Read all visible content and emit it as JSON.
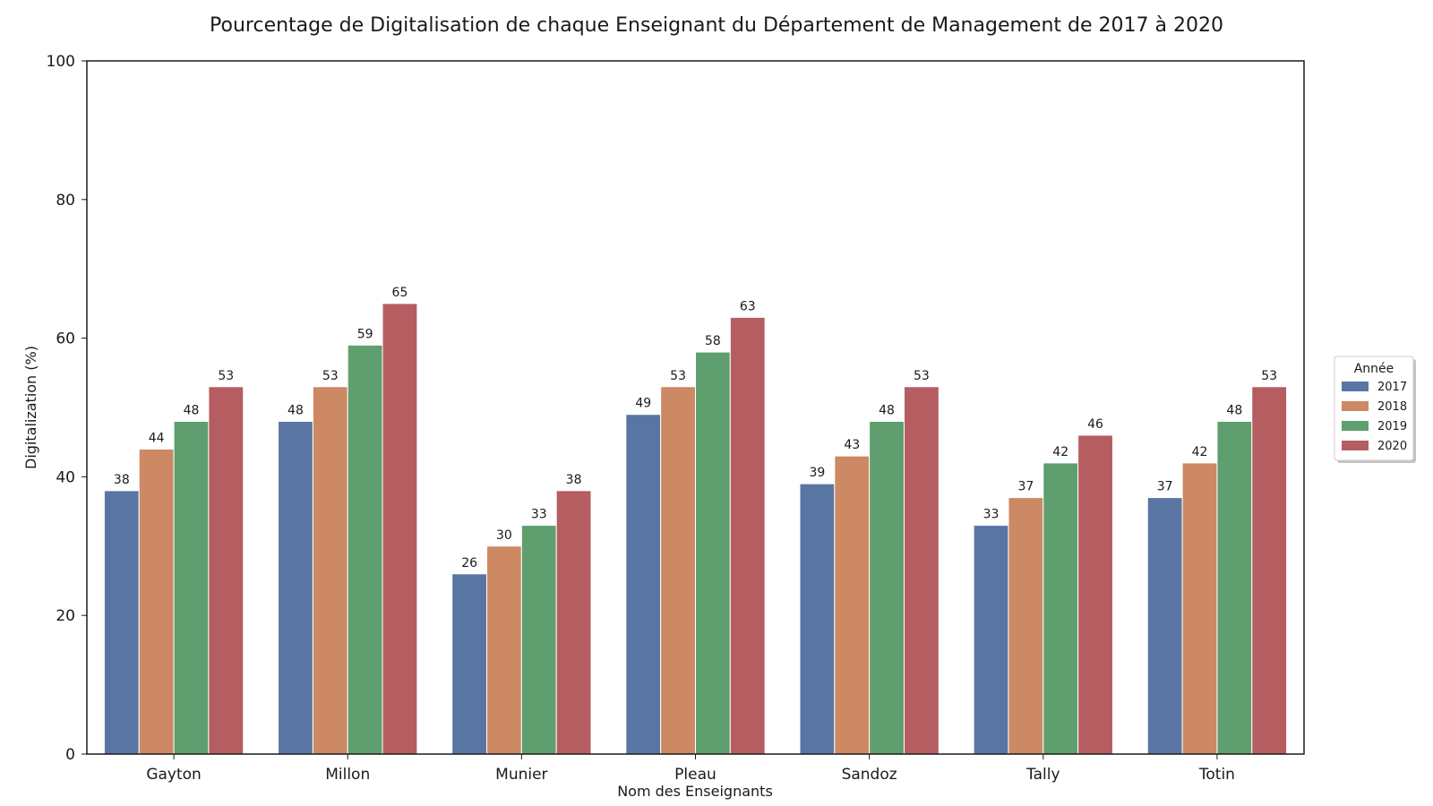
{
  "chart_data": {
    "type": "bar",
    "title": "Pourcentage de Digitalisation de chaque Enseignant du Département de Management de 2017 à 2020",
    "xlabel": "Nom des Enseignants",
    "ylabel": "Digitalization (%)",
    "ylim": [
      0,
      100
    ],
    "yticks": [
      "0",
      "20",
      "40",
      "60",
      "80",
      "100"
    ],
    "grid": false,
    "legend": {
      "title": "Année",
      "placement": "right-center"
    },
    "categories": [
      "Gayton",
      "Millon",
      "Munier",
      "Pleau",
      "Sandoz",
      "Tally",
      "Totin"
    ],
    "series": [
      {
        "name": "2017",
        "color": "#5975a4",
        "values": [
          38,
          48,
          26,
          49,
          39,
          33,
          37
        ]
      },
      {
        "name": "2018",
        "color": "#cc8963",
        "values": [
          44,
          53,
          30,
          53,
          43,
          37,
          42
        ]
      },
      {
        "name": "2019",
        "color": "#5f9e6e",
        "values": [
          48,
          59,
          33,
          58,
          48,
          42,
          48
        ]
      },
      {
        "name": "2020",
        "color": "#b55d60",
        "values": [
          53,
          65,
          38,
          63,
          53,
          46,
          53
        ]
      }
    ]
  }
}
